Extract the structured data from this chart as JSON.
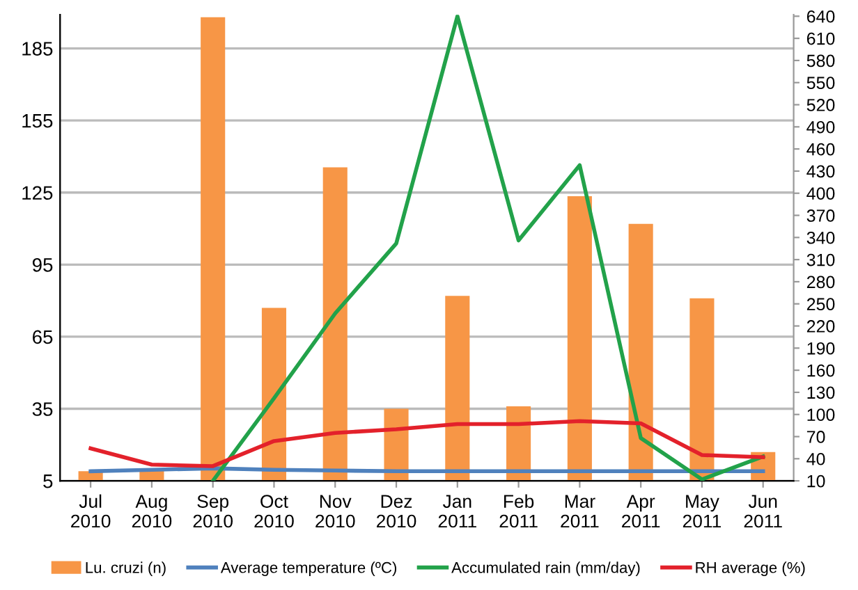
{
  "chart_data": {
    "type": "bar",
    "categories": [
      "Jul\n2010",
      "Aug\n2010",
      "Sep\n2010",
      "Oct\n2010",
      "Nov\n2010",
      "Dez\n2010",
      "Jan\n2011",
      "Feb\n2011",
      "Mar\n2011",
      "Apr\n2011",
      "May\n2011",
      "Jun\n2011"
    ],
    "series": [
      {
        "name": "Lu. cruzi (n)",
        "color": "#f79646",
        "values": [
          9,
          10,
          198,
          77,
          135.5,
          35,
          82,
          36,
          123.5,
          112,
          81,
          17
        ]
      },
      {
        "name": "Average temperature (ºC)",
        "type": "line",
        "axis": "y2",
        "color": "#4f81bd",
        "values": [
          23,
          25,
          27,
          25,
          24,
          23,
          23,
          23,
          23,
          23,
          23,
          23
        ]
      },
      {
        "name": "Accumulated rain (mm/day)",
        "type": "line",
        "axis": "y2",
        "color": "#22a24a",
        "values": [
          null,
          null,
          10,
          122,
          237,
          332,
          640,
          336,
          438,
          68,
          12,
          43
        ]
      },
      {
        "name": "RH average (%)",
        "type": "line",
        "axis": "y2",
        "color": "#e3212b",
        "values": [
          54,
          32,
          30,
          64,
          75,
          80,
          87,
          87,
          91,
          88,
          45,
          42
        ]
      }
    ],
    "ylim": [
      5,
      199
    ],
    "yticks": [
      5,
      35,
      65,
      95,
      125,
      155,
      185
    ],
    "y2lim": [
      10,
      642
    ],
    "y2ticks": [
      10,
      40,
      70,
      100,
      130,
      160,
      190,
      220,
      250,
      280,
      310,
      340,
      370,
      400,
      430,
      460,
      490,
      520,
      550,
      580,
      610,
      640
    ],
    "grid": "y",
    "legend": "bottom",
    "marker": "none",
    "line_style": "solid"
  }
}
